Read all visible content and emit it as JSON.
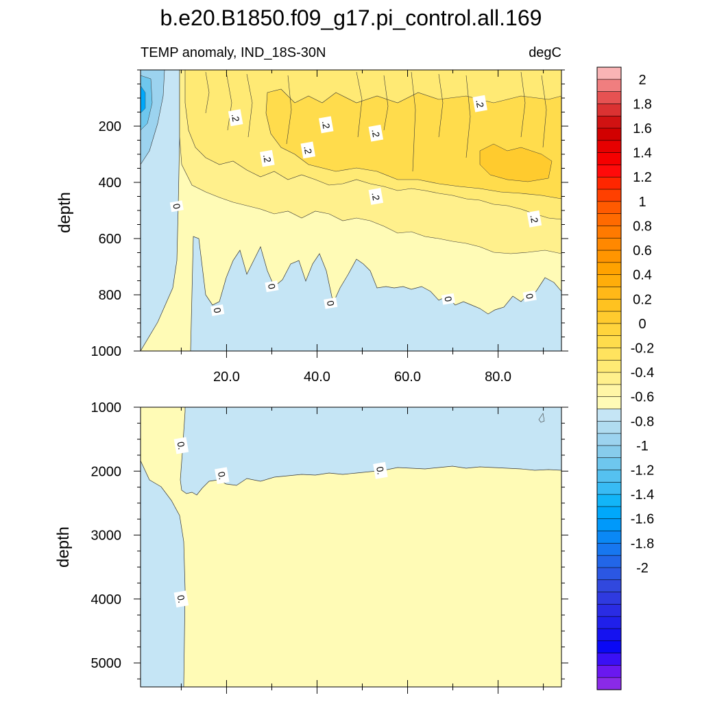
{
  "figure": {
    "title": "b.e20.B1850.f09_g17.pi_control.all.169",
    "left_subtitle": "TEMP anomaly, IND_18S-30N",
    "right_subtitle": "degC"
  },
  "chart_data": [
    {
      "type": "heatmap",
      "subtype": "filled-contour",
      "panel": "upper",
      "ylabel": "depth",
      "xlabel": "",
      "xlim": [
        1,
        94
      ],
      "ylim": [
        1000,
        0
      ],
      "y_inverted": true,
      "x_ticks": [
        20.0,
        40.0,
        60.0,
        80.0
      ],
      "x_tick_labels": [
        "20.0",
        "40.0",
        "60.0",
        "80.0"
      ],
      "y_ticks": [
        200,
        400,
        600,
        800,
        1000
      ],
      "y_tick_labels": [
        "200",
        "400",
        "600",
        "800",
        "1000"
      ],
      "contour_labels": [
        {
          "text": ".2",
          "x": 22,
          "y": 170
        },
        {
          "text": ".2",
          "x": 29,
          "y": 315
        },
        {
          "text": ".2",
          "x": 38,
          "y": 285
        },
        {
          "text": ".2",
          "x": 42,
          "y": 195
        },
        {
          "text": ".2",
          "x": 53,
          "y": 225
        },
        {
          "text": ".2",
          "x": 53,
          "y": 450
        },
        {
          "text": ".2",
          "x": 76,
          "y": 120
        },
        {
          "text": ".2",
          "x": 88,
          "y": 530
        },
        {
          "text": "0",
          "x": 9,
          "y": 485
        },
        {
          "text": "0",
          "x": 18,
          "y": 855
        },
        {
          "text": "0",
          "x": 30,
          "y": 770
        },
        {
          "text": "0",
          "x": 43,
          "y": 830
        },
        {
          "text": "0",
          "x": 69,
          "y": 815
        },
        {
          "text": "0",
          "x": 87,
          "y": 805
        }
      ],
      "field_summary": "warm anomaly 0 to 0.4 degC in the upper ~700 m for x > 12, strongest 0.3-0.4 near 150-450 m; cold anomaly down to about -1 degC near x 1-4 at 50-250 m; weak negative anomaly below ~750 m"
    },
    {
      "type": "heatmap",
      "subtype": "filled-contour",
      "panel": "lower",
      "ylabel": "depth",
      "xlabel": "",
      "xlim": [
        1,
        94
      ],
      "ylim": [
        5375,
        1000
      ],
      "y_inverted": true,
      "y_ticks": [
        1000,
        2000,
        3000,
        4000,
        5000
      ],
      "y_tick_labels": [
        "1000",
        "2000",
        "3000",
        "4000",
        "5000"
      ],
      "contour_labels": [
        {
          "text": "0.",
          "x": 10,
          "y": 1600
        },
        {
          "text": "0.",
          "x": 19,
          "y": 2070
        },
        {
          "text": "0.",
          "x": 54,
          "y": 1990
        },
        {
          "text": "0.",
          "x": 10,
          "y": 4000
        }
      ],
      "field_summary": "weak negative anomaly (0 to -0.1) from 1000 to ~2000 m for x > 10 and below 2000 m for x < 10; weak positive anomaly (0 to 0.1) below ~2000 m for x > 10 and in the upper left corner"
    }
  ],
  "colorbar": {
    "labels": [
      "2",
      "1.8",
      "1.6",
      "1.4",
      "1.2",
      "1",
      "0.8",
      "0.6",
      "0.4",
      "0.2",
      "0",
      "-0.2",
      "-0.4",
      "-0.6",
      "-0.8",
      "-1",
      "-1.2",
      "-1.4",
      "-1.6",
      "-1.8",
      "-2"
    ],
    "levels_min": -2.0,
    "levels_max": 2.1,
    "interval": 0.1,
    "colors_top_to_bottom": [
      "#f9b4b5",
      "#f07e7f",
      "#e65252",
      "#db3232",
      "#d11212",
      "#d10000",
      "#e60000",
      "#f50000",
      "#ff0a0a",
      "#ff2600",
      "#ff4000",
      "#ff5a00",
      "#ff6a00",
      "#ff7a00",
      "#ff8800",
      "#ff9500",
      "#ffa200",
      "#ffad0a",
      "#ffb818",
      "#ffc220",
      "#ffcb2e",
      "#ffd43c",
      "#ffdc4c",
      "#ffe35e",
      "#ffea74",
      "#fff08c",
      "#fff6a6",
      "#fffbb6",
      "#c5e5f5",
      "#b0dcf0",
      "#9cd3ef",
      "#87ccec",
      "#6ec7ee",
      "#55c1f0",
      "#38bbf4",
      "#12b5f8",
      "#00a8fa",
      "#0099fa",
      "#0a88f5",
      "#1777f0",
      "#2266e8",
      "#2b57e3",
      "#3148de",
      "#2f3ae0",
      "#2a2ce4",
      "#2020ea",
      "#1512f0",
      "#0a08f5",
      "#3a10f5",
      "#6a18f0",
      "#8a2ae8"
    ]
  }
}
